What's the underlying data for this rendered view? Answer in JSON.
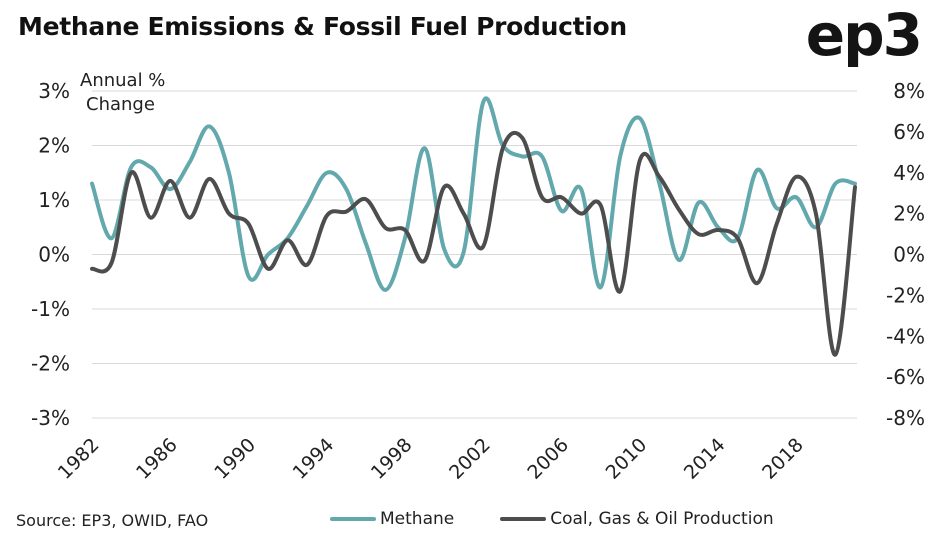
{
  "title": "Methane Emissions & Fossil Fuel Production",
  "logo_text": "ep3",
  "source": "Source: EP3, OWID, FAO",
  "colors": {
    "methane": "#62a8ad",
    "fossil": "#4d4d4d",
    "grid": "#d9d9d9"
  },
  "chart_data": {
    "type": "line",
    "x": [
      1982,
      1983,
      1984,
      1985,
      1986,
      1987,
      1988,
      1989,
      1990,
      1991,
      1992,
      1993,
      1994,
      1995,
      1996,
      1997,
      1998,
      1999,
      2000,
      2001,
      2002,
      2003,
      2004,
      2005,
      2006,
      2007,
      2008,
      2009,
      2010,
      2011,
      2012,
      2013,
      2014,
      2015,
      2016,
      2017,
      2018,
      2019,
      2020,
      2021
    ],
    "x_ticks": [
      "1982",
      "1986",
      "1990",
      "1994",
      "1998",
      "2002",
      "2006",
      "2010",
      "2014",
      "2018"
    ],
    "annotation": [
      "Annual %",
      "Change"
    ],
    "y_left": {
      "ylim": [
        -3,
        3
      ],
      "ticks": [
        "3%",
        "2%",
        "1%",
        "0%",
        "-1%",
        "-2%",
        "-3%"
      ]
    },
    "y_right": {
      "ylim": [
        -8,
        8
      ],
      "ticks": [
        "8%",
        "6%",
        "4%",
        "2%",
        "0%",
        "-2%",
        "-4%",
        "-6%",
        "-8%"
      ]
    },
    "series": [
      {
        "name": "Methane",
        "axis": "left",
        "values": [
          1.3,
          0.3,
          1.6,
          1.6,
          1.2,
          1.7,
          2.35,
          1.5,
          -0.4,
          0.0,
          0.3,
          0.9,
          1.5,
          1.2,
          0.2,
          -0.65,
          0.3,
          1.95,
          0.1,
          0.05,
          2.8,
          2.0,
          1.8,
          1.8,
          0.8,
          1.2,
          -0.6,
          1.8,
          2.5,
          1.3,
          -0.1,
          0.95,
          0.5,
          0.3,
          1.55,
          0.85,
          1.05,
          0.5,
          1.3,
          1.3
        ]
      },
      {
        "name": "Coal, Gas & Oil Production",
        "axis": "right",
        "values": [
          -0.7,
          -0.4,
          4.0,
          1.8,
          3.6,
          1.8,
          3.7,
          2.0,
          1.5,
          -0.7,
          0.7,
          -0.5,
          1.9,
          2.1,
          2.7,
          1.3,
          1.2,
          -0.3,
          3.3,
          2.0,
          0.4,
          5.2,
          5.7,
          2.8,
          2.8,
          2.0,
          2.4,
          -1.8,
          4.6,
          3.8,
          2.2,
          1.0,
          1.2,
          0.8,
          -1.4,
          1.5,
          3.8,
          2.0,
          -4.9,
          3.3
        ]
      }
    ]
  }
}
